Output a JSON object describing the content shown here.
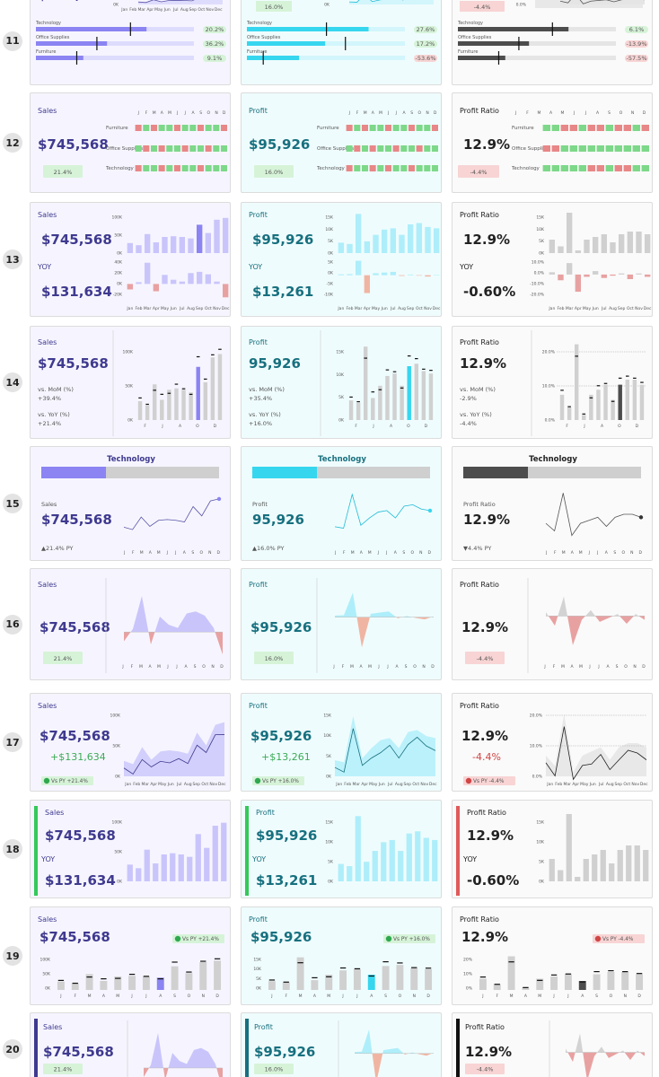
{
  "rows": [
    "11",
    "12",
    "13",
    "14",
    "15",
    "16",
    "17",
    "18",
    "19",
    "20"
  ],
  "cards": {
    "sales": {
      "label": "Sales",
      "value": "$745,568",
      "value_plain": "$745,568",
      "yoy_value": "$131,634",
      "badge": "21.4%",
      "mom": "vs. MoM (%)",
      "mom_val": "+39.4%",
      "yoy_line": "vs. YoY (%)",
      "yoy_val": "+21.4%",
      "py": "▲21.4% PY",
      "delta": "+$131,634",
      "vs_py": "Vs PY +21.4%"
    },
    "profit": {
      "label": "Profit",
      "value": "$95,926",
      "value_plain": "95,926",
      "yoy_value": "$13,261",
      "badge": "16.0%",
      "mom": "vs. MoM (%)",
      "mom_val": "+35.4%",
      "yoy_line": "vs. YoY (%)",
      "yoy_val": "+16.0%",
      "py": "▲16.0% PY",
      "delta": "+$13,261",
      "vs_py": "Vs PY +16.0%"
    },
    "ratio": {
      "label": "Profit Ratio",
      "value": "12.9%",
      "value_plain": "12.9%",
      "yoy_value": "-0.60%",
      "badge": "-4.4%",
      "mom": "vs. MoM (%)",
      "mom_val": "-2.9%",
      "yoy_line": "vs. YoY (%)",
      "yoy_val": "-4.4%",
      "py": "▼4.4% PY",
      "delta": "-4.4%",
      "vs_py": "Vs PY -4.4%"
    }
  },
  "yoy_label": "YOY",
  "category_title": "Technology",
  "categories": [
    "Technology",
    "Office Supplies",
    "Furniture"
  ],
  "categories_r12": [
    "Furniture",
    "Office Supplies",
    "Technology"
  ],
  "r11_badges": {
    "sales": [
      "20.2%",
      "36.2%",
      "9.1%"
    ],
    "profit": [
      "27.6%",
      "17.2%",
      "-53.6%"
    ],
    "ratio": [
      "6.1%",
      "-13.9%",
      "-57.5%"
    ]
  },
  "months_short": [
    "Jan",
    "Feb",
    "Mar",
    "Apr",
    "May",
    "Jun",
    "Jul",
    "Aug",
    "Sep",
    "Oct",
    "Nov",
    "Dec"
  ],
  "months_letter": [
    "J",
    "F",
    "M",
    "A",
    "M",
    "J",
    "J",
    "A",
    "S",
    "O",
    "N",
    "D"
  ],
  "months_letter_alt": [
    "F",
    "J",
    "A",
    "O",
    "D"
  ],
  "axis_ticks": {
    "sales_100k": [
      "100K",
      "50K",
      "0K"
    ],
    "sales_yoy": [
      "40K",
      "20K",
      "0K",
      "-20K"
    ],
    "profit_15k": [
      "15K",
      "10K",
      "5K",
      "0K"
    ],
    "profit_yoy": [
      "5K",
      "0K",
      "-5K",
      "-10K"
    ],
    "ratio_15k": [
      "15K",
      "10K",
      "5K",
      "0K"
    ],
    "ratio_pct": [
      "20.0%",
      "10.0%",
      "0.0%"
    ],
    "ratio_yoy": [
      "10.0%",
      "0.0%",
      "-10.0%",
      "-20.0%"
    ],
    "ratio_20": [
      "20%",
      "10%",
      "0%"
    ],
    "r14_sales": [
      "100K",
      "50K",
      "0K"
    ],
    "r14_profit": [
      "15K",
      "10K",
      "5K",
      "0K"
    ],
    "r11_sales": [
      "0K"
    ],
    "r11_ratio": [
      "0.0%"
    ],
    "r11_profit": [
      "0K"
    ]
  },
  "chart_data": [
    {
      "type": "bar",
      "name": "monthly_sales",
      "categories": [
        "Jan",
        "Feb",
        "Mar",
        "Apr",
        "May",
        "Jun",
        "Jul",
        "Aug",
        "Sep",
        "Oct",
        "Nov",
        "Dec"
      ],
      "values": [
        28000,
        22000,
        53000,
        30000,
        45000,
        47000,
        45000,
        41000,
        79000,
        56000,
        93000,
        98000
      ],
      "ylim": [
        0,
        120000
      ]
    },
    {
      "type": "bar",
      "name": "monthly_profit",
      "categories": [
        "Jan",
        "Feb",
        "Mar",
        "Apr",
        "May",
        "Jun",
        "Jul",
        "Aug",
        "Sep",
        "Oct",
        "Nov",
        "Dec"
      ],
      "values": [
        4000,
        3500,
        15000,
        4500,
        7000,
        9000,
        9500,
        7000,
        11000,
        11500,
        10000,
        9500
      ],
      "ylim": [
        0,
        16500
      ]
    },
    {
      "type": "bar",
      "name": "monthly_ratio",
      "categories": [
        "Jan",
        "Feb",
        "Mar",
        "Apr",
        "May",
        "Jun",
        "Jul",
        "Aug",
        "Sep",
        "Oct",
        "Nov",
        "Dec"
      ],
      "values": [
        10,
        5,
        30,
        2,
        10,
        12,
        14,
        8,
        14,
        16,
        16,
        14
      ],
      "ylim": [
        0,
        32
      ]
    },
    {
      "type": "bar",
      "name": "sales_yoy",
      "categories": [
        "Jan",
        "Feb",
        "Mar",
        "Apr",
        "May",
        "Jun",
        "Jul",
        "Aug",
        "Sep",
        "Oct",
        "Nov",
        "Dec"
      ],
      "values": [
        -9000,
        3000,
        35000,
        -12000,
        15000,
        7000,
        4000,
        18000,
        20000,
        16000,
        4000,
        -22000
      ],
      "ylim": [
        -26000,
        42000
      ]
    },
    {
      "type": "bar",
      "name": "profit_yoy",
      "categories": [
        "Jan",
        "Feb",
        "Mar",
        "Apr",
        "May",
        "Jun",
        "Jul",
        "Aug",
        "Sep",
        "Oct",
        "Nov",
        "Dec"
      ],
      "values": [
        400,
        500,
        6500,
        -8000,
        900,
        1200,
        1500,
        -300,
        300,
        -200,
        -600,
        200
      ],
      "ylim": [
        -11000,
        7500
      ]
    },
    {
      "type": "bar",
      "name": "ratio_yoy",
      "categories": [
        "Jan",
        "Feb",
        "Mar",
        "Apr",
        "May",
        "Jun",
        "Jul",
        "Aug",
        "Sep",
        "Oct",
        "Nov",
        "Dec"
      ],
      "values": [
        2,
        -5,
        10,
        -15,
        -2,
        3,
        -3,
        -1,
        1,
        -4,
        1,
        -2
      ],
      "ylim": [
        -22,
        14
      ]
    },
    {
      "type": "heatmap",
      "name": "category_month_growth",
      "rows": [
        "Furniture",
        "Office Supplies",
        "Technology"
      ],
      "values": [
        [
          0,
          1,
          0,
          1,
          1,
          0,
          1,
          1,
          0,
          1,
          1,
          0
        ],
        [
          1,
          0,
          1,
          0,
          1,
          1,
          0,
          1,
          1,
          0,
          1,
          1
        ],
        [
          0,
          1,
          1,
          0,
          1,
          0,
          1,
          1,
          0,
          1,
          1,
          1
        ]
      ]
    }
  ]
}
